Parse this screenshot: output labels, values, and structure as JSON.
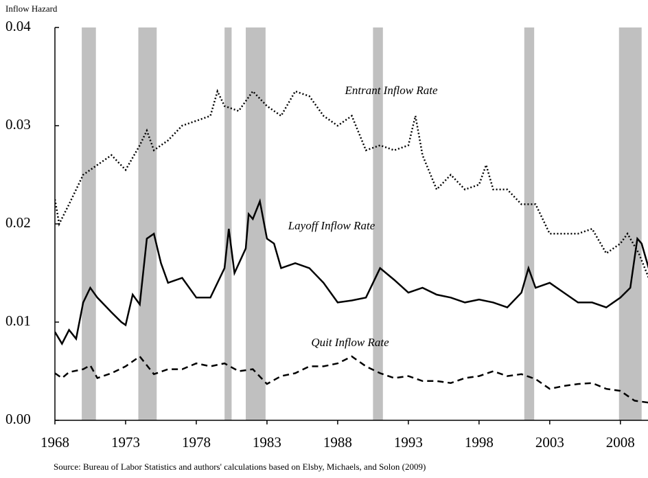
{
  "chart_data": {
    "type": "line",
    "y_label": "Inflow Hazard",
    "source": "Source: Bureau of Labor Statistics and authors' calculations based on Elsby, Michaels, and Solon (2009)",
    "xlim": [
      1968,
      2010
    ],
    "xticks": [
      1968,
      1973,
      1978,
      1983,
      1988,
      1993,
      1998,
      2003,
      2008
    ],
    "ylim": [
      0,
      0.04
    ],
    "yticks": [
      {
        "value": 0,
        "label": "0.00"
      },
      0.01,
      0.02,
      0.03,
      0.04
    ],
    "recessions": [
      [
        1969.9,
        1970.9
      ],
      [
        1973.9,
        1975.2
      ],
      [
        1980.0,
        1980.5
      ],
      [
        1981.5,
        1982.9
      ],
      [
        1990.5,
        1991.2
      ],
      [
        2001.2,
        2001.9
      ],
      [
        2007.9,
        2009.5
      ]
    ],
    "recession_color": "#c0c0c0",
    "series": [
      {
        "name": "Entrant Inflow Rate",
        "color": "#000000",
        "style": "dotted",
        "x": [
          1968,
          1968.3,
          1969,
          1970,
          1971,
          1972,
          1973,
          1974,
          1974.5,
          1975,
          1976,
          1977,
          1978,
          1979,
          1979.5,
          1980,
          1981,
          1982,
          1983,
          1984,
          1985,
          1986,
          1987,
          1988,
          1989,
          1990,
          1991,
          1992,
          1993,
          1993.5,
          1994,
          1995,
          1996,
          1997,
          1998,
          1998.5,
          1999,
          2000,
          2001,
          2002,
          2003,
          2004,
          2005,
          2006,
          2007,
          2008,
          2008.5,
          2009.3,
          2010
        ],
        "values": [
          0.0225,
          0.02,
          0.022,
          0.025,
          0.026,
          0.027,
          0.0255,
          0.028,
          0.0295,
          0.0275,
          0.0285,
          0.03,
          0.0305,
          0.031,
          0.0335,
          0.032,
          0.0315,
          0.0335,
          0.032,
          0.031,
          0.0335,
          0.033,
          0.031,
          0.03,
          0.031,
          0.0275,
          0.028,
          0.0275,
          0.028,
          0.031,
          0.027,
          0.0235,
          0.025,
          0.0235,
          0.024,
          0.026,
          0.0235,
          0.0235,
          0.022,
          0.022,
          0.019,
          0.019,
          0.019,
          0.0195,
          0.017,
          0.018,
          0.019,
          0.017,
          0.0145
        ]
      },
      {
        "name": "Layoff Inflow Rate",
        "color": "#000000",
        "style": "solid",
        "x": [
          1968,
          1968.5,
          1969,
          1969.5,
          1970,
          1970.5,
          1971,
          1972,
          1972.7,
          1973,
          1973.5,
          1974,
          1974.5,
          1975,
          1975.5,
          1976,
          1977,
          1978,
          1979,
          1980,
          1980.3,
          1980.7,
          1981.5,
          1981.7,
          1982,
          1982.5,
          1983,
          1983.5,
          1984,
          1985,
          1986,
          1987,
          1988,
          1989,
          1990,
          1991,
          1992,
          1993,
          1994,
          1995,
          1996,
          1997,
          1998,
          1999,
          2000,
          2001,
          2001.5,
          2002,
          2003,
          2004,
          2005,
          2006,
          2007,
          2008,
          2008.7,
          2009.2,
          2009.5,
          2010
        ],
        "values": [
          0.009,
          0.0078,
          0.0092,
          0.0083,
          0.012,
          0.0135,
          0.0125,
          0.011,
          0.01,
          0.0097,
          0.0128,
          0.0118,
          0.0185,
          0.019,
          0.016,
          0.014,
          0.0145,
          0.0125,
          0.0125,
          0.0155,
          0.0195,
          0.015,
          0.0175,
          0.021,
          0.0205,
          0.0223,
          0.0185,
          0.018,
          0.0155,
          0.016,
          0.0155,
          0.014,
          0.012,
          0.0122,
          0.0125,
          0.0155,
          0.0143,
          0.013,
          0.0135,
          0.0128,
          0.0125,
          0.012,
          0.0123,
          0.012,
          0.0115,
          0.013,
          0.0155,
          0.0135,
          0.014,
          0.013,
          0.012,
          0.012,
          0.0115,
          0.0125,
          0.0135,
          0.0185,
          0.018,
          0.0155
        ]
      },
      {
        "name": "Quit Inflow Rate",
        "color": "#000000",
        "style": "dashed",
        "x": [
          1968,
          1968.5,
          1969,
          1970,
          1970.5,
          1971,
          1972,
          1973,
          1974,
          1975,
          1976,
          1977,
          1978,
          1979,
          1980,
          1981,
          1982,
          1983,
          1984,
          1985,
          1986,
          1987,
          1988,
          1989,
          1990,
          1991,
          1992,
          1993,
          1994,
          1995,
          1996,
          1997,
          1998,
          1999,
          2000,
          2001,
          2002,
          2003,
          2004,
          2005,
          2006,
          2007,
          2008,
          2009,
          2010
        ],
        "values": [
          0.0048,
          0.0043,
          0.0049,
          0.0052,
          0.0056,
          0.0043,
          0.0048,
          0.0055,
          0.0065,
          0.0047,
          0.0052,
          0.0052,
          0.0058,
          0.0055,
          0.0058,
          0.005,
          0.0052,
          0.0037,
          0.0045,
          0.0048,
          0.0055,
          0.0055,
          0.0058,
          0.0065,
          0.0055,
          0.0048,
          0.0043,
          0.0045,
          0.004,
          0.004,
          0.0038,
          0.0043,
          0.0045,
          0.005,
          0.0045,
          0.0047,
          0.0042,
          0.0032,
          0.0035,
          0.0037,
          0.0038,
          0.0032,
          0.003,
          0.002,
          0.0018
        ]
      }
    ]
  }
}
